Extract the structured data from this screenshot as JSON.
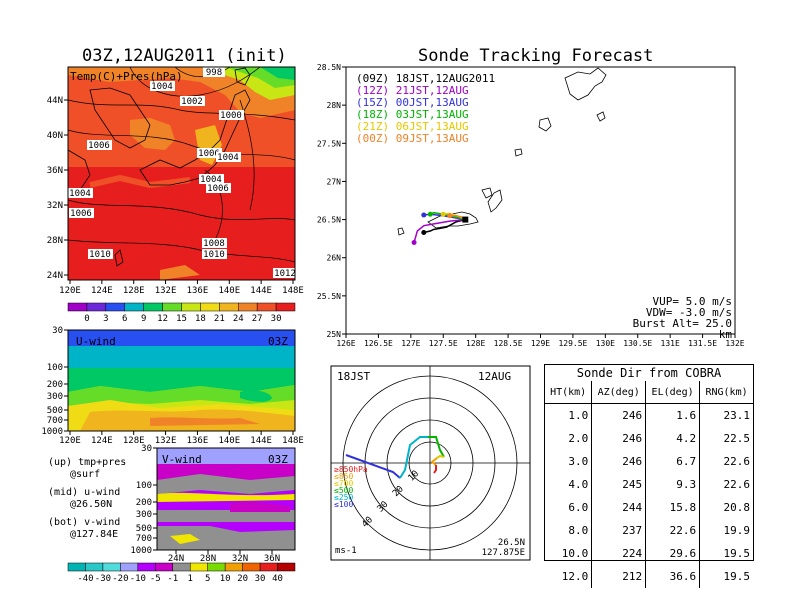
{
  "left_map": {
    "title": "03Z,12AUG2011 (init)",
    "label": "Temp(C)+Pres(hPa)",
    "xticks": [
      "120E",
      "124E",
      "128E",
      "132E",
      "136E",
      "140E",
      "144E",
      "148E"
    ],
    "yticks": [
      "44N",
      "40N",
      "36N",
      "32N",
      "28N",
      "24N"
    ],
    "isobar_labels": [
      "998",
      "1004",
      "1002",
      "1000",
      "1006",
      "1006",
      "1004",
      "1004",
      "1006",
      "1004",
      "1006",
      "1008",
      "1010",
      "1010",
      "1012"
    ],
    "colorbar_ticks": [
      "0",
      "3",
      "6",
      "9",
      "12",
      "15",
      "18",
      "21",
      "24",
      "27",
      "30"
    ],
    "colorbar_colors": [
      "#a000c8",
      "#6e28dc",
      "#2850f0",
      "#00b4c8",
      "#00c864",
      "#64dc28",
      "#c8e614",
      "#f0dc14",
      "#f0b41e",
      "#f08228",
      "#f05028",
      "#e61e1e"
    ]
  },
  "uwind": {
    "label": "U-wind",
    "time": "03Z",
    "yticks": [
      "30",
      "100",
      "200",
      "300",
      "500",
      "700",
      "1000"
    ],
    "xticks": [
      "120E",
      "124E",
      "128E",
      "132E",
      "136E",
      "140E",
      "144E",
      "148E"
    ]
  },
  "vwind": {
    "label": "V-wind",
    "time": "03Z",
    "yticks": [
      "30",
      "100",
      "200",
      "300",
      "500",
      "700",
      "1000"
    ],
    "xticks": [
      "24N",
      "28N",
      "32N",
      "36N"
    ],
    "colorbar_ticks": [
      "-40",
      "-30",
      "-20",
      "-10",
      "-5",
      "-1",
      "1",
      "5",
      "10",
      "20",
      "30",
      "40"
    ],
    "colorbar_colors": [
      "#00b4b4",
      "#28c8c8",
      "#50dcdc",
      "#a0a0ff",
      "#b400ff",
      "#c800c8",
      "#909090",
      "#f0e600",
      "#78dc00",
      "#f0a000",
      "#f06400",
      "#e61e1e",
      "#b40000"
    ]
  },
  "notes": {
    "up_1": "(up) tmp+pres",
    "up_2": "@surf",
    "mid_1": "(mid) u-wind",
    "mid_2": "@26.50N",
    "bot_1": "(bot) v-wind",
    "bot_2": "@127.84E"
  },
  "tracking": {
    "title": "Sonde Tracking Forecast",
    "legend": [
      {
        "code": "(09Z)",
        "text": "18JST,12AUG2011",
        "color": "#000000"
      },
      {
        "code": "(12Z)",
        "text": "21JST,12AUG",
        "color": "#a000c8"
      },
      {
        "code": "(15Z)",
        "text": "00JST,13AUG",
        "color": "#3232dc"
      },
      {
        "code": "(18Z)",
        "text": "03JST,13AUG",
        "color": "#00b400"
      },
      {
        "code": "(21Z)",
        "text": "06JST,13AUG",
        "color": "#e6c800"
      },
      {
        "code": "(00Z)",
        "text": "09JST,13AUG",
        "color": "#f08228"
      }
    ],
    "xticks": [
      "126E",
      "126.5E",
      "127E",
      "127.5E",
      "128E",
      "128.5E",
      "129E",
      "129.5E",
      "130E",
      "130.5E",
      "131E",
      "131.5E",
      "132E"
    ],
    "yticks": [
      "28.5N",
      "28N",
      "27.5N",
      "27N",
      "26.5N",
      "26N",
      "25.5N",
      "25N"
    ],
    "params": [
      "VUP=  5.0 m/s",
      "VDW= -3.0 m/s",
      "Burst Alt= 25.0 km"
    ]
  },
  "polar": {
    "time": "18JST",
    "date": "12AUG",
    "rings": [
      "10",
      "20",
      "30",
      "40"
    ],
    "legend": [
      {
        "text": "≥850hPa",
        "color": "#e61e1e"
      },
      {
        "text": "≤850",
        "color": "#f0a000"
      },
      {
        "text": "≤700",
        "color": "#e6c800"
      },
      {
        "text": "≤500",
        "color": "#00b400"
      },
      {
        "text": "≤250",
        "color": "#00b4c8"
      },
      {
        "text": "≤100",
        "color": "#3232dc"
      }
    ],
    "unit": "ms-1",
    "lat": "26.5N",
    "lon": "127.875E"
  },
  "direction_table": {
    "title": "Sonde Dir from COBRA",
    "headers": [
      "HT(km)",
      "AZ(deg)",
      "EL(deg)",
      "RNG(km)"
    ],
    "rows": [
      [
        "1.0",
        "246",
        "1.6",
        "23.1"
      ],
      [
        "2.0",
        "246",
        "4.2",
        "22.5"
      ],
      [
        "3.0",
        "246",
        "6.7",
        "22.6"
      ],
      [
        "4.0",
        "245",
        "9.3",
        "22.6"
      ],
      [
        "6.0",
        "244",
        "15.8",
        "20.8"
      ],
      [
        "8.0",
        "237",
        "22.6",
        "19.9"
      ],
      [
        "10.0",
        "224",
        "29.6",
        "19.5"
      ],
      [
        "12.0",
        "212",
        "36.6",
        "19.5"
      ]
    ]
  },
  "chart_data": [
    {
      "type": "line",
      "title": "Sonde Tracking Forecast",
      "xlim": [
        126,
        132
      ],
      "ylim": [
        25,
        28.5
      ],
      "xlabel": "",
      "ylabel": "",
      "series": [
        {
          "name": "18JST,12AUG2011",
          "color": "#000000",
          "x": [
            127.84,
            127.7,
            127.55,
            127.35,
            127.3,
            127.2
          ],
          "y": [
            26.5,
            26.47,
            26.4,
            26.37,
            26.35,
            26.33
          ]
        },
        {
          "name": "21JST,12AUG",
          "color": "#a000c8",
          "x": [
            127.84,
            127.6,
            127.4,
            127.2,
            127.1,
            127.05
          ],
          "y": [
            26.5,
            26.48,
            26.45,
            26.42,
            26.35,
            26.2
          ]
        },
        {
          "name": "00JST,13AUG",
          "color": "#3232dc",
          "x": [
            127.84,
            127.7,
            127.5,
            127.3,
            127.2
          ],
          "y": [
            26.5,
            26.52,
            26.55,
            26.57,
            26.56
          ]
        },
        {
          "name": "03JST,13AUG",
          "color": "#00b400",
          "x": [
            127.84,
            127.7,
            127.5,
            127.35,
            127.3
          ],
          "y": [
            26.5,
            26.53,
            26.57,
            26.59,
            26.57
          ]
        },
        {
          "name": "06JST,13AUG",
          "color": "#e6c800",
          "x": [
            127.84,
            127.75,
            127.6,
            127.5
          ],
          "y": [
            26.5,
            26.54,
            26.58,
            26.57
          ]
        },
        {
          "name": "09JST,13AUG",
          "color": "#f08228",
          "x": [
            127.84,
            127.8,
            127.7,
            127.6
          ],
          "y": [
            26.5,
            26.53,
            26.55,
            26.55
          ]
        }
      ]
    },
    {
      "type": "table",
      "title": "Sonde Dir from COBRA",
      "columns": [
        "HT(km)",
        "AZ(deg)",
        "EL(deg)",
        "RNG(km)"
      ],
      "rows": [
        [
          1.0,
          246,
          1.6,
          23.1
        ],
        [
          2.0,
          246,
          4.2,
          22.5
        ],
        [
          3.0,
          246,
          6.7,
          22.6
        ],
        [
          4.0,
          245,
          9.3,
          22.6
        ],
        [
          6.0,
          244,
          15.8,
          20.8
        ],
        [
          8.0,
          237,
          22.6,
          19.9
        ],
        [
          10.0,
          224,
          29.6,
          19.5
        ],
        [
          12.0,
          212,
          36.6,
          19.5
        ]
      ]
    }
  ]
}
